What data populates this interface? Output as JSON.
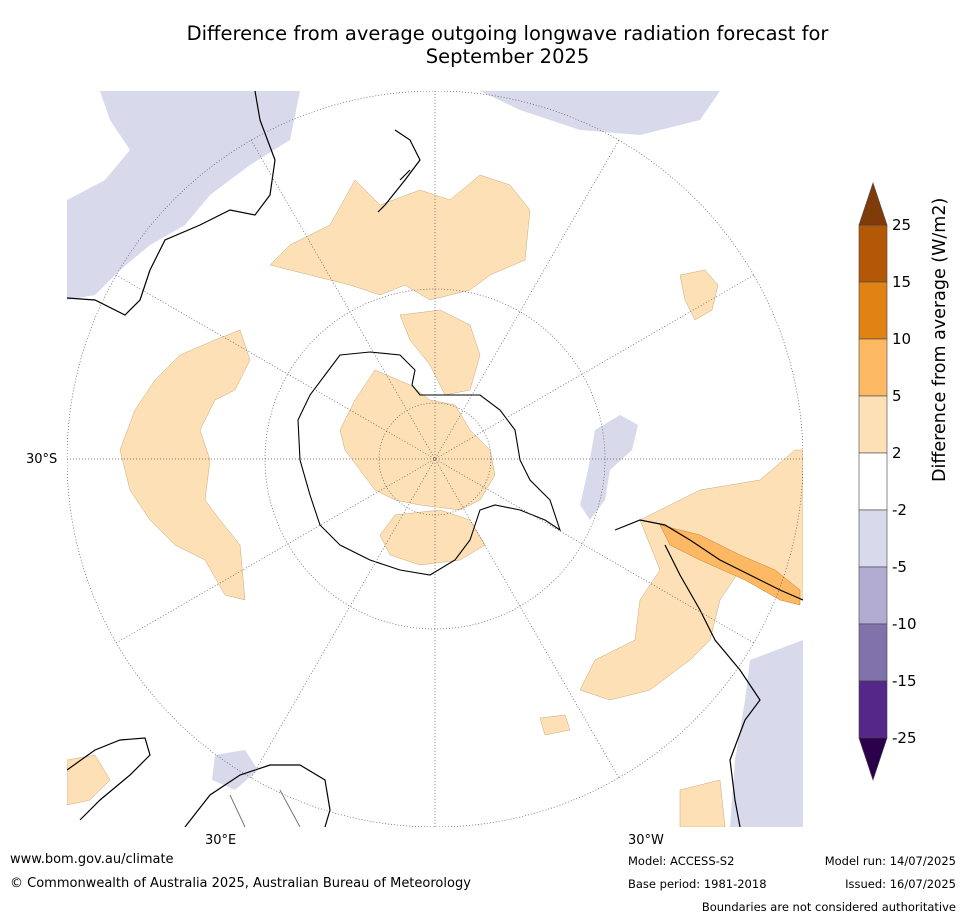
{
  "title_line1": "Difference from average outgoing longwave radiation forecast for",
  "title_line2": "September 2025",
  "map_labels": {
    "lat_30s": "30°S",
    "lon_30e": "30°E",
    "lon_30w": "30°W"
  },
  "colorbar": {
    "label": "Difference from average (W/m2)",
    "ticks": [
      "25",
      "15",
      "10",
      "5",
      "2",
      "-2",
      "-5",
      "-10",
      "-15",
      "-25"
    ],
    "colors": {
      "gt25": "#7f3b08",
      "15_25": "#b35806",
      "10_15": "#e08214",
      "5_10": "#fdb863",
      "2_5": "#fee0b6",
      "m2_2": "#ffffff",
      "m5_m2": "#d8daeb",
      "m10_m5": "#b2abd2",
      "m15_m10": "#8073ac",
      "m25_m15": "#542788",
      "lt_m25": "#2d004b"
    }
  },
  "footer": {
    "url": "www.bom.gov.au/climate",
    "copyright": "© Commonwealth of Australia 2025, Australian Bureau of Meteorology",
    "model": "Model: ACCESS-S2",
    "base_period": "Base period: 1981-2018",
    "model_run": "Model run: 14/07/2025",
    "issued": "Issued: 16/07/2025",
    "disclaimer": "Boundaries are not considered authoritative"
  }
}
